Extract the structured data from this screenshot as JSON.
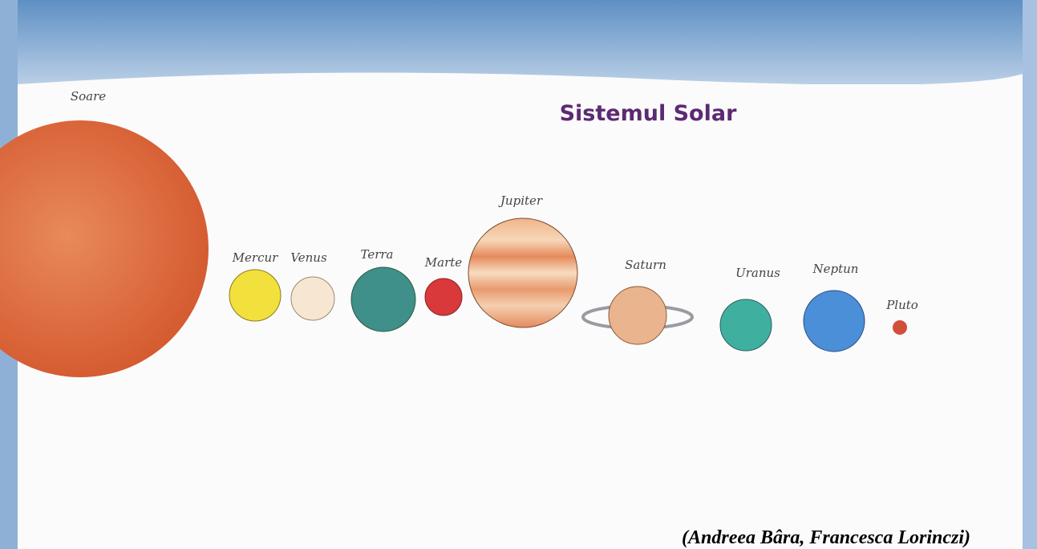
{
  "title": "Sistemul Solar",
  "credit": "(Andreea Bâra, Francesca Lorinczi)",
  "planets": [
    "Soare",
    "Mercur",
    "Venus",
    "Terra",
    "Marte",
    "Jupiter",
    "Saturn",
    "Uranus",
    "Neptun",
    "Pluto"
  ]
}
